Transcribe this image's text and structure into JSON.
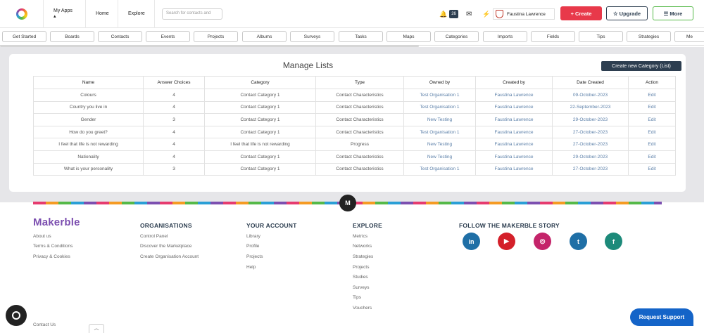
{
  "header": {
    "apps_label": "My Apps ▴",
    "home_label": "Home",
    "explore_label": "Explore",
    "search_placeholder": "Search for contacts and",
    "notification_count": "26",
    "user_name": "Faustina Lawrence",
    "create_label": "+ Create",
    "upgrade_label": "☆ Upgrade",
    "more_label": "☰ More"
  },
  "tabs": [
    "Get Started",
    "Boards",
    "Contacts",
    "Events",
    "Projects",
    "Albums",
    "Surveys",
    "Tasks",
    "Maps",
    "Categories",
    "Imports",
    "Fields",
    "Tips",
    "Strategies",
    "Me"
  ],
  "page": {
    "title": "Manage Lists",
    "create_button": "Create new Category (List)"
  },
  "table": {
    "columns": [
      "Name",
      "Answer Choices",
      "Category",
      "Type",
      "Owned by",
      "Created by",
      "Date Created",
      "Action"
    ],
    "rows": [
      [
        "Colours",
        "4",
        "Contact Category 1",
        "Contact Characteristics",
        "Test Organisation 1",
        "Faustina Lawrence",
        "09-October-2023",
        "Edit"
      ],
      [
        "Country you live in",
        "4",
        "Contact Category 1",
        "Contact Characteristics",
        "Test Organisation 1",
        "Faustina Lawrence",
        "22-September-2023",
        "Edit"
      ],
      [
        "Gender",
        "3",
        "Contact Category 1",
        "Contact Characteristics",
        "New Testing",
        "Faustina Lawrence",
        "29-October-2023",
        "Edit"
      ],
      [
        "How do you greet?",
        "4",
        "Contact Category 1",
        "Contact Characteristics",
        "Test Organisation 1",
        "Faustina Lawrence",
        "27-October-2023",
        "Edit"
      ],
      [
        "I feel that life is not rewarding",
        "4",
        "I feel that life is not rewarding",
        "Progress",
        "New Testing",
        "Faustina Lawrence",
        "27-October-2023",
        "Edit"
      ],
      [
        "Nationality",
        "4",
        "Contact Category 1",
        "Contact Characteristics",
        "New Testing",
        "Faustina Lawrence",
        "29-October-2023",
        "Edit"
      ],
      [
        "What is your personality",
        "3",
        "Contact Category 1",
        "Contact Characteristics",
        "Test Organisation 1",
        "Faustina Lawrence",
        "27-October-2023",
        "Edit"
      ]
    ]
  },
  "footer": {
    "m_badge": "M",
    "logo_text": "Makerble",
    "about": [
      "About us",
      "Terms & Conditions",
      "Privacy & Cookies"
    ],
    "organisations": {
      "title": "ORGANISATIONS",
      "links": [
        "Control Panel",
        "Discover the Marketplace",
        "Create Organisation Account"
      ]
    },
    "account": {
      "title": "YOUR ACCOUNT",
      "links": [
        "Library",
        "Profile",
        "Projects",
        "Help"
      ]
    },
    "explore": {
      "title": "EXPLORE",
      "links": [
        "Metrics",
        "Networks",
        "Strategies",
        "Projects",
        "Studies",
        "Surveys",
        "Tips",
        "Vouchers"
      ]
    },
    "follow": {
      "title": "FOLLOW THE MAKERBLE STORY"
    },
    "contact": "Contact Us",
    "support_button": "Request Support"
  },
  "colors": {
    "brand_dark": "#2d3e50",
    "create_red": "#e8394a",
    "link_blue": "#5b7fa8",
    "support_blue": "#1464c8"
  },
  "social_icons": [
    "linkedin-icon",
    "youtube-icon",
    "instagram-icon",
    "twitter-icon",
    "facebook-icon"
  ]
}
